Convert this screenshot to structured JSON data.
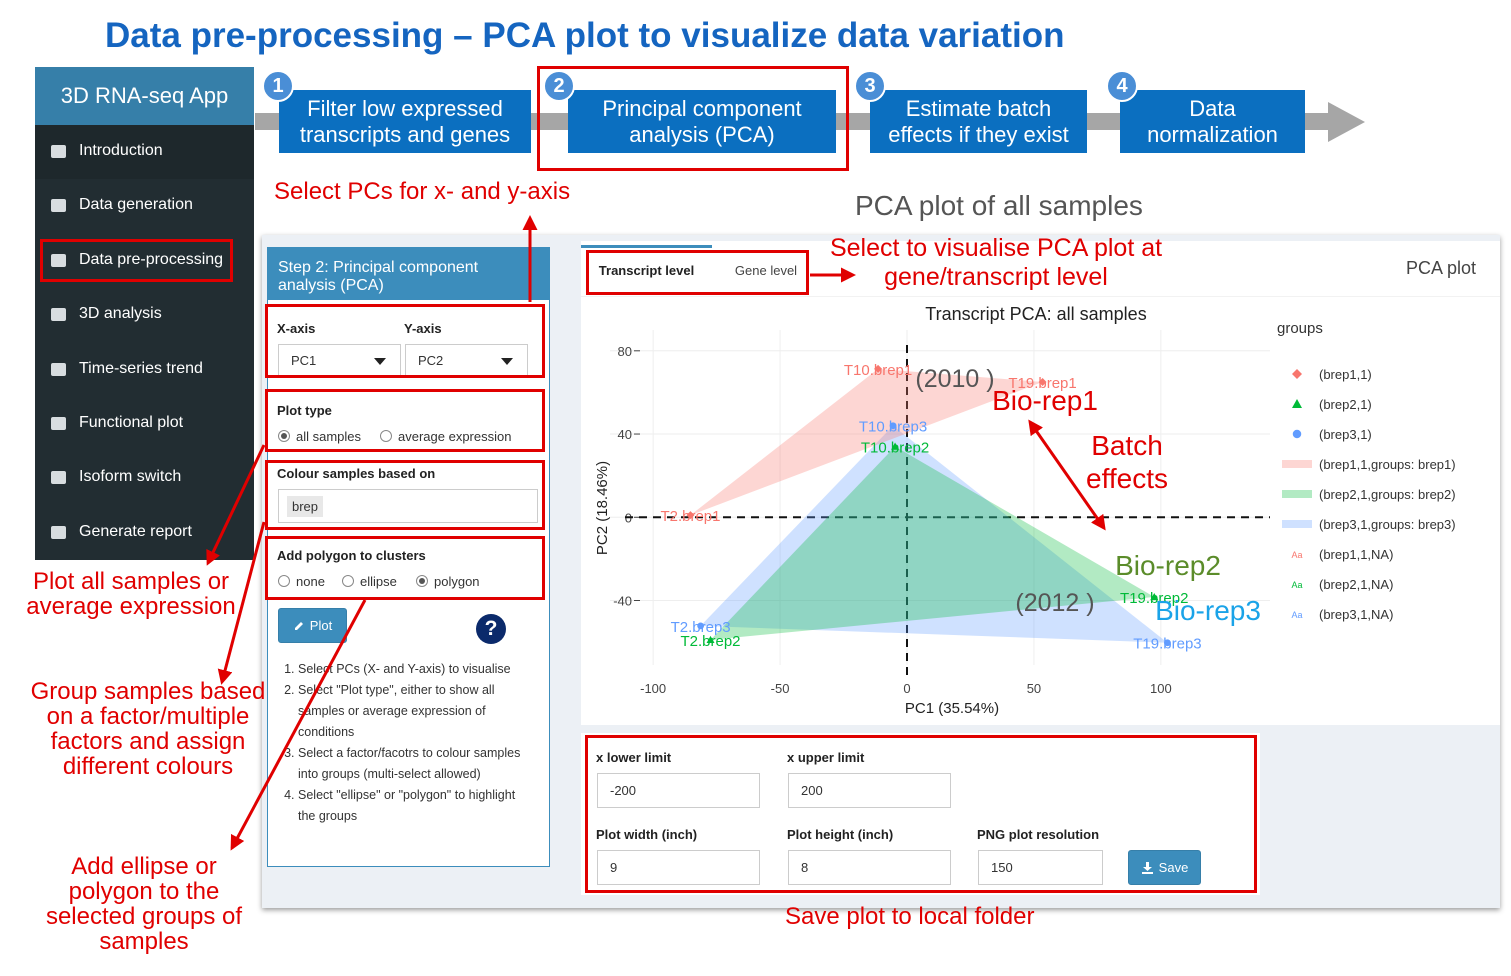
{
  "title": "Data pre-processing – PCA plot to visualize data variation",
  "sidebar": {
    "app_title": "3D RNA-seq App",
    "items": [
      "Introduction",
      "Data generation",
      "Data pre-processing",
      "3D analysis",
      "Time-series trend",
      "Functional plot",
      "Isoform switch",
      "Generate report"
    ]
  },
  "steps": [
    {
      "number": 1,
      "label": "Filter low expressed transcripts and genes"
    },
    {
      "number": 2,
      "label": "Principal component analysis (PCA)"
    },
    {
      "number": 3,
      "label": "Estimate batch effects if they exist"
    },
    {
      "number": 4,
      "label": "Data normalization"
    }
  ],
  "plot_heading": "PCA plot of all samples",
  "panel": {
    "title": "Step 2: Principal component analysis (PCA)",
    "x_axis": {
      "label": "X-axis",
      "value": "PC1"
    },
    "y_axis": {
      "label": "Y-axis",
      "value": "PC2"
    },
    "plot_type": {
      "label": "Plot type",
      "options": [
        "all samples",
        "average expression"
      ],
      "selected": 0
    },
    "colour": {
      "label": "Colour samples based on",
      "tags": [
        "brep"
      ]
    },
    "polygon": {
      "label": "Add polygon to clusters",
      "options": [
        "none",
        "ellipse",
        "polygon"
      ],
      "selected": 2
    },
    "plot_button": "Plot",
    "help": "?",
    "instructions": [
      "Select PCs (X- and Y-axis) to visualise",
      "Select \"Plot type\", either to show all samples or average expression of conditions",
      "Select a factor/facotrs to colour samples into groups (multi-select allowed)",
      "Select \"ellipse\" or \"polygon\" to highlight the groups"
    ]
  },
  "plot_box": {
    "tabs": [
      "Transcript level",
      "Gene level"
    ],
    "active_tab": 0,
    "title": "PCA plot"
  },
  "chart_data": {
    "type": "scatter",
    "title": "Transcript PCA: all samples",
    "x_label": "PC1 (35.54%)",
    "y_label": "PC2 (18.46%)",
    "xlim": [
      -117,
      143
    ],
    "ylim": [
      -71,
      90
    ],
    "xticks": [
      -100,
      -50,
      0,
      50,
      100
    ],
    "yticks": [
      -40,
      0,
      40,
      80
    ],
    "grid": true,
    "vline": 0,
    "hline": 0,
    "legend_title": "groups",
    "text_key": "Aa",
    "series": [
      {
        "name": "(brep1,1)",
        "hull_name": "(brep1,1,groups: brep1)",
        "text_name": "(brep1,1,NA)",
        "color": "#f8766d",
        "marker": "diamond",
        "labels": [
          "T10.brep1",
          "T19.brep1",
          "T2.brep1"
        ],
        "x": [
          -11.4,
          53.4,
          -85.3
        ],
        "y": [
          71.3,
          65,
          1
        ]
      },
      {
        "name": "(brep2,1)",
        "hull_name": "(brep2,1,groups: brep2)",
        "text_name": "(brep2,1,NA)",
        "color": "#00ba38",
        "marker": "triangle",
        "labels": [
          "T10.brep2",
          "T19.brep2",
          "T2.brep2"
        ],
        "x": [
          -4.7,
          97.4,
          -77.4
        ],
        "y": [
          34,
          -38.3,
          -58.9
        ]
      },
      {
        "name": "(brep3,1)",
        "hull_name": "(brep3,1,groups: brep3)",
        "text_name": "(brep3,1,NA)",
        "color": "#619cff",
        "marker": "circle",
        "labels": [
          "T10.brep3",
          "T19.brep3",
          "T2.brep3"
        ],
        "x": [
          -5.5,
          102.6,
          -81.3
        ],
        "y": [
          44,
          -60.3,
          -52.2
        ]
      }
    ]
  },
  "plot_annotations": [
    "(2010 )",
    "(2012 )",
    "Bio-rep1",
    "Bio-rep2",
    "Bio-rep3",
    "Batch effects"
  ],
  "save_box": {
    "fields": [
      {
        "label": "x lower limit",
        "value": -200
      },
      {
        "label": "x upper limit",
        "value": 200
      },
      {
        "label": "Plot width (inch)",
        "value": 9
      },
      {
        "label": "Plot height (inch)",
        "value": 8
      },
      {
        "label": "PNG plot resolution",
        "value": 150
      }
    ],
    "save_button": "Save"
  },
  "callouts": [
    "Select PCs for x- and y-axis",
    "Select to visualise PCA plot at gene/transcript level",
    "Plot all samples or average expression",
    "Group samples based on a factor/multiple factors and assign different colours",
    "Add ellipse or polygon to the selected groups of samples",
    "Save plot to local folder"
  ]
}
